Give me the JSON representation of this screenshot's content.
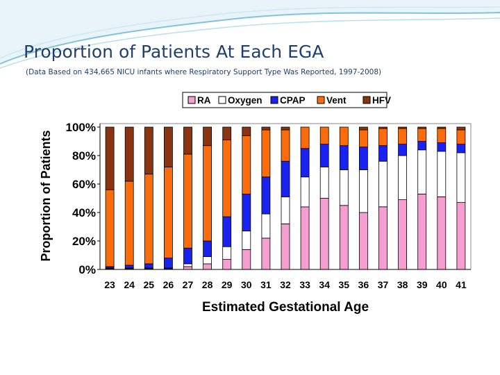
{
  "slide": {
    "title": "Proportion of Patients At Each EGA",
    "subtitle": "(Data Based on 434,665 NICU infants where Respiratory Support Type Was Reported, 1997-2008)"
  },
  "colors": {
    "title": "#1f3f6e",
    "RA": "#f59fd0",
    "Oxygen": "#ffffff",
    "CPAP": "#1a22f0",
    "Vent": "#fb6d0c",
    "HFV": "#8a3410",
    "wave": "#7fc4de"
  },
  "chart_data": {
    "type": "bar",
    "stacked": true,
    "xlabel": "Estimated Gestational Age",
    "ylabel": "Proportion of Patients",
    "ylim": [
      0,
      100
    ],
    "y_ticks": [
      "0%",
      "20%",
      "40%",
      "60%",
      "80%",
      "100%"
    ],
    "grid": false,
    "legend_position": "top",
    "categories": [
      "23",
      "24",
      "25",
      "26",
      "27",
      "28",
      "29",
      "30",
      "31",
      "32",
      "33",
      "34",
      "35",
      "36",
      "37",
      "38",
      "39",
      "40",
      "41"
    ],
    "series": [
      {
        "name": "RA",
        "values": [
          0.5,
          0.5,
          0.5,
          0.5,
          2,
          4,
          7,
          14,
          22,
          32,
          44,
          50,
          45,
          40,
          44,
          49,
          53,
          51,
          47
        ]
      },
      {
        "name": "Oxygen",
        "values": [
          0.5,
          0.5,
          0.5,
          0.5,
          2,
          5,
          9,
          13,
          17,
          19,
          21,
          22,
          25,
          30,
          32,
          31,
          31,
          32,
          35
        ]
      },
      {
        "name": "CPAP",
        "values": [
          1,
          2,
          3,
          7,
          11,
          11,
          21,
          26,
          26,
          25,
          20,
          16,
          17,
          16,
          11,
          8,
          6,
          6,
          6
        ]
      },
      {
        "name": "Vent",
        "values": [
          54,
          59,
          63,
          64,
          66,
          67,
          54,
          41,
          33,
          22,
          15,
          12,
          13,
          12,
          12,
          11,
          9,
          10,
          10
        ]
      },
      {
        "name": "HFV",
        "values": [
          44,
          38,
          33,
          28,
          19,
          13,
          9,
          6,
          2,
          2,
          0,
          0,
          0,
          2,
          1,
          1,
          1,
          1,
          2
        ]
      }
    ]
  }
}
